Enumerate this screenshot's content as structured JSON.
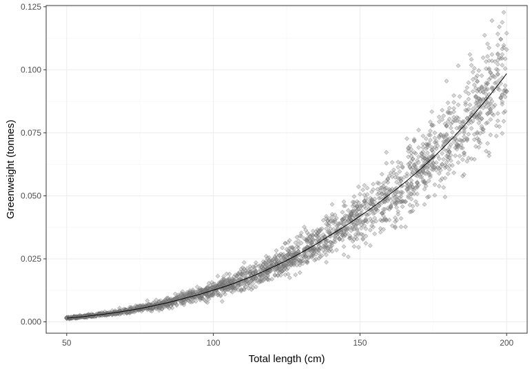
{
  "chart_data": {
    "type": "scatter",
    "xlabel": "Total length (cm)",
    "ylabel": "Greenweight (tonnes)",
    "xlim": [
      43,
      207
    ],
    "ylim": [
      -0.0045,
      0.1255
    ],
    "x_ticks": [
      50,
      100,
      150,
      200
    ],
    "x_tick_labels": [
      "50",
      "100",
      "150",
      "200"
    ],
    "y_ticks": [
      0.0,
      0.025,
      0.05,
      0.075,
      0.1,
      0.125
    ],
    "y_tick_labels": [
      "0.000",
      "0.025",
      "0.050",
      "0.075",
      "0.100",
      "0.125"
    ],
    "grid": true,
    "legend": "none",
    "point_shape": "diamond",
    "point_color": "#8c8c8c",
    "line_color": "#000000",
    "fit_curve": {
      "x": [
        50,
        60,
        70,
        80,
        90,
        100,
        110,
        120,
        130,
        140,
        150,
        160,
        170,
        180,
        190,
        200
      ],
      "y": [
        0.0015,
        0.0027,
        0.0043,
        0.0065,
        0.0093,
        0.0126,
        0.0166,
        0.0216,
        0.0275,
        0.0345,
        0.042,
        0.0505,
        0.06,
        0.071,
        0.084,
        0.0985
      ]
    },
    "point_count": 2400,
    "point_x_range": [
      50,
      200
    ],
    "point_spread_fraction": 0.12
  }
}
